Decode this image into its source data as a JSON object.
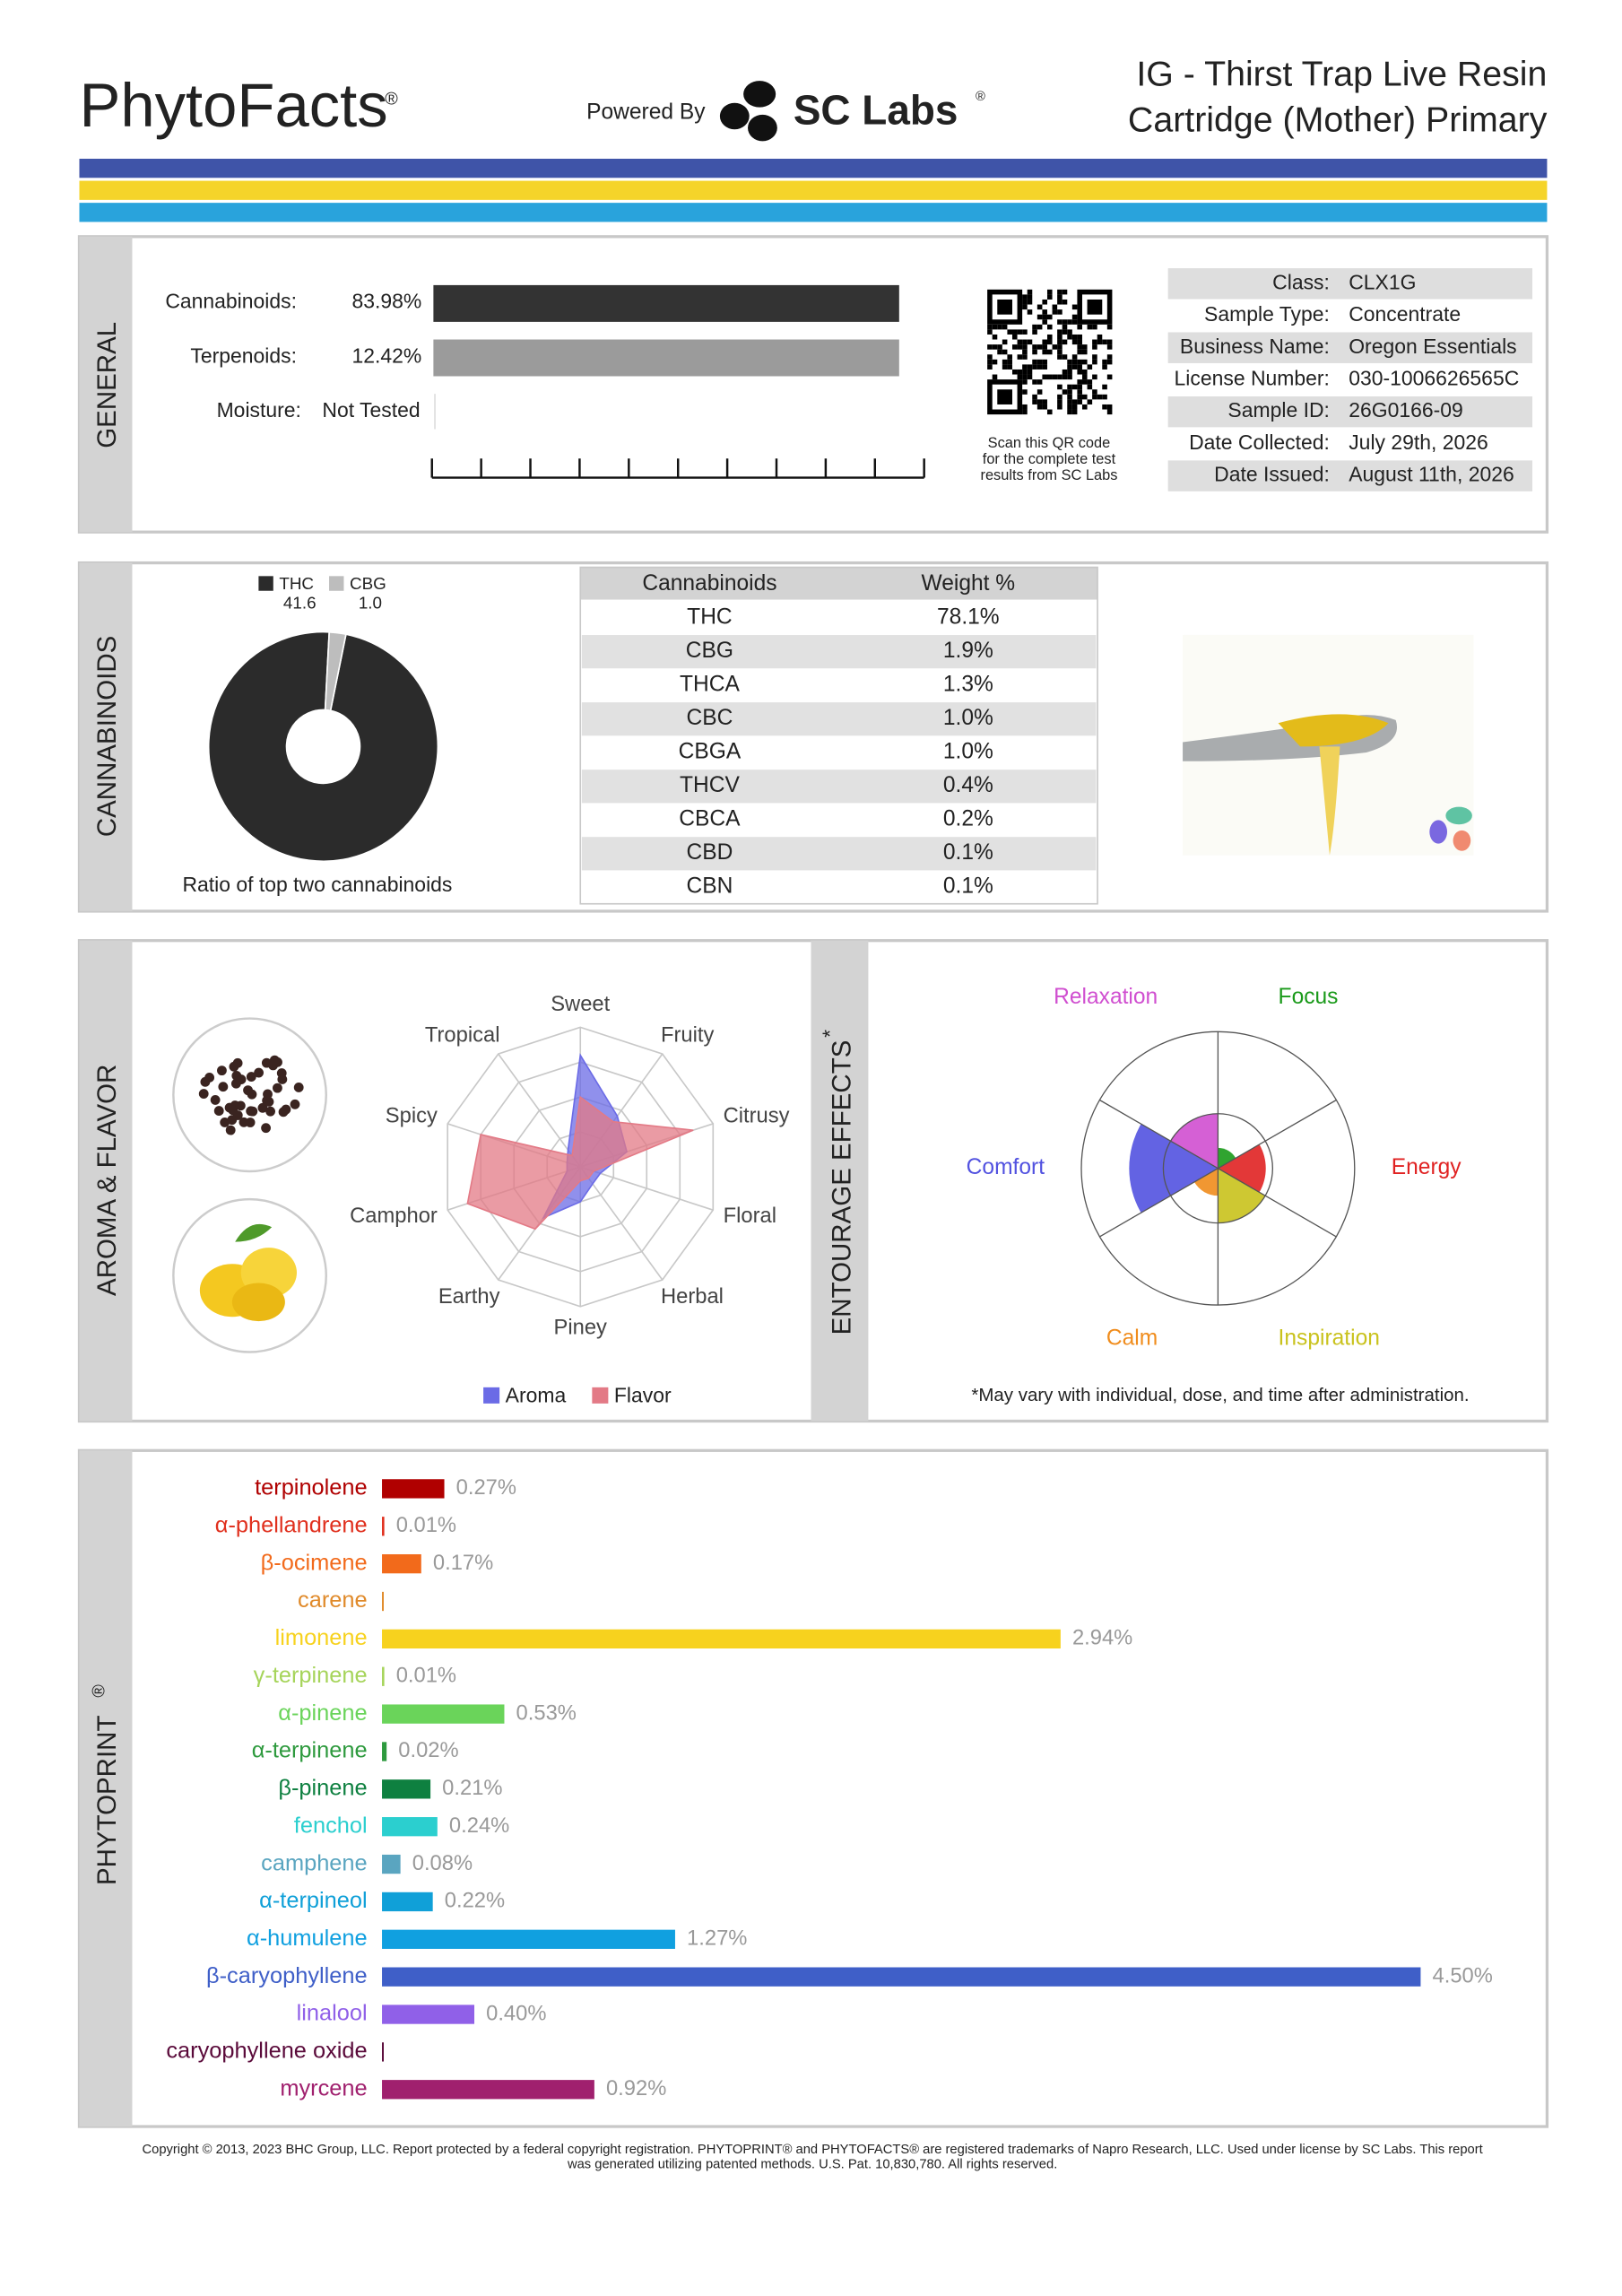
{
  "header": {
    "brand": "PhytoFacts",
    "brand_mark": "®",
    "powered_by": "Powered By",
    "lab": "SC Labs",
    "lab_mark": "®",
    "title_lines": [
      "IG - Thirst Trap Live Resin",
      "Cartridge (Mother) Primary"
    ]
  },
  "general": {
    "section": "GENERAL",
    "metrics": [
      {
        "label": "Cannabinoids:",
        "value": 83.98,
        "text": "83.98%"
      },
      {
        "label": "Terpenoids:",
        "value": 12.42,
        "text": "12.42%"
      },
      {
        "label": "Moisture:",
        "text": "Not Tested"
      }
    ],
    "qr_caption": [
      "Scan this QR code",
      "for the complete test",
      "results from SC Labs"
    ],
    "info": [
      {
        "label": "Class:",
        "value": "CLX1G"
      },
      {
        "label": "Sample Type:",
        "value": "Concentrate"
      },
      {
        "label": "Business Name:",
        "value": "Oregon Essentials"
      },
      {
        "label": "License Number:",
        "value": "030-1006626565C"
      },
      {
        "label": "Sample ID:",
        "value": "26G0166-09"
      },
      {
        "label": "Date Collected:",
        "value": "July 29th, 2026"
      },
      {
        "label": "Date Issued:",
        "value": "August 11th, 2026"
      }
    ]
  },
  "cannabinoids": {
    "section": "CANNABINOIDS",
    "pie": {
      "type": "pie",
      "series": [
        {
          "name": "THC",
          "color": "#2b2b2b",
          "value": 41.6,
          "value_label": "41.6"
        },
        {
          "name": "CBG",
          "color": "#bdbdbd",
          "value": 1.0,
          "value_label": "1.0"
        }
      ],
      "caption": "Ratio of top two cannabinoids"
    },
    "table": {
      "headers": [
        "Cannabinoids",
        "Weight %"
      ],
      "rows": [
        [
          "THC",
          "78.1%"
        ],
        [
          "CBG",
          "1.9%"
        ],
        [
          "THCA",
          "1.3%"
        ],
        [
          "CBC",
          "1.0%"
        ],
        [
          "CBGA",
          "1.0%"
        ],
        [
          "THCV",
          "0.4%"
        ],
        [
          "CBCA",
          "0.2%"
        ],
        [
          "CBD",
          "0.1%"
        ],
        [
          "CBN",
          "0.1%"
        ]
      ]
    }
  },
  "aroma": {
    "section": "AROMA & FLAVOR",
    "radar": {
      "type": "radar",
      "categories": [
        "Sweet",
        "Fruity",
        "Citrusy",
        "Floral",
        "Herbal",
        "Piney",
        "Earthy",
        "Camphor",
        "Spicy",
        "Tropical"
      ],
      "rlim": [
        0,
        1
      ],
      "rticks": [
        0.25,
        0.5,
        0.75,
        1
      ],
      "series": [
        {
          "name": "Aroma",
          "color": "#6b6be6",
          "values": [
            0.8,
            0.45,
            0.35,
            0.15,
            0.15,
            0.25,
            0.45,
            0.1,
            0.1,
            0.15
          ]
        },
        {
          "name": "Flavor",
          "color": "#e37a86",
          "values": [
            0.5,
            0.4,
            0.85,
            0.1,
            0.1,
            0.1,
            0.55,
            0.85,
            0.75,
            0.1
          ]
        }
      ]
    }
  },
  "entourage": {
    "section": "ENTOURAGE EFFECTS",
    "section_mark": "*",
    "chart": {
      "type": "polar-area",
      "rlim": [
        0,
        1
      ],
      "rticks": [
        0.4,
        1
      ],
      "categories": [
        "Focus",
        "Energy",
        "Inspiration",
        "Calm",
        "Comfort",
        "Relaxation"
      ],
      "colors": [
        "#1a9a1a",
        "#e02222",
        "#c9c21c",
        "#f08c1c",
        "#5252e0",
        "#d04fd0"
      ],
      "values": [
        0.15,
        0.35,
        0.4,
        0.2,
        0.65,
        0.4
      ]
    },
    "note": "*May vary with individual, dose, and time after administration."
  },
  "phytoprint": {
    "section": "PHYTOPRINT",
    "section_mark": "®",
    "type": "bar",
    "terpenes": [
      {
        "name": "terpinolene",
        "value": 0.27,
        "label": "0.27%",
        "color": "#b00000"
      },
      {
        "name": "α-phellandrene",
        "value": 0.01,
        "label": "0.01%",
        "color": "#e0301e"
      },
      {
        "name": "β-ocimene",
        "value": 0.17,
        "label": "0.17%",
        "color": "#f26a1b"
      },
      {
        "name": "carene",
        "value": 0.001,
        "color": "#e08a2a"
      },
      {
        "name": "limonene",
        "value": 2.94,
        "label": "2.94%",
        "color": "#f7d21e"
      },
      {
        "name": "γ-terpinene",
        "value": 0.01,
        "label": "0.01%",
        "color": "#a6d45a"
      },
      {
        "name": "α-pinene",
        "value": 0.53,
        "label": "0.53%",
        "color": "#6ad45a"
      },
      {
        "name": "α-terpinene",
        "value": 0.02,
        "label": "0.02%",
        "color": "#2e9a3e"
      },
      {
        "name": "β-pinene",
        "value": 0.21,
        "label": "0.21%",
        "color": "#0e8040"
      },
      {
        "name": "fenchol",
        "value": 0.24,
        "label": "0.24%",
        "color": "#2bcfcf"
      },
      {
        "name": "camphene",
        "value": 0.08,
        "label": "0.08%",
        "color": "#5aa5c0"
      },
      {
        "name": "α-terpineol",
        "value": 0.22,
        "label": "0.22%",
        "color": "#10a0d8"
      },
      {
        "name": "α-humulene",
        "value": 1.27,
        "label": "1.27%",
        "color": "#10a0e0"
      },
      {
        "name": "β-caryophyllene",
        "value": 4.5,
        "label": "4.50%",
        "color": "#3f5fc8"
      },
      {
        "name": "linalool",
        "value": 0.4,
        "label": "0.40%",
        "color": "#9060e8"
      },
      {
        "name": "caryophyllene oxide",
        "value": 0.001,
        "color": "#5a0a3a"
      },
      {
        "name": "myrcene",
        "value": 0.92,
        "label": "0.92%",
        "color": "#a0206e"
      }
    ]
  },
  "footer": {
    "lines": [
      "Copyright © 2013, 2023 BHC Group, LLC. Report protected by a federal copyright registration. PHYTOPRINT® and PHYTOFACTS® are registered trademarks of Napro Research, LLC. Used under license by SC Labs. This report",
      "was generated utilizing patented methods. U.S. Pat. 10,830,780. All rights reserved."
    ]
  }
}
